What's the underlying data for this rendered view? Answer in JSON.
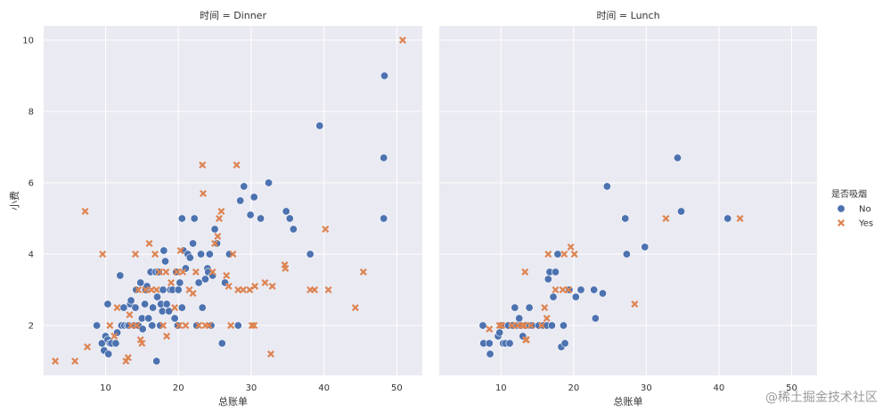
{
  "watermark": "@稀土掘金技术社区",
  "chart_data": {
    "type": "scatter",
    "facet_label_template": "时间 = {facet}",
    "xlabel": "总账单",
    "ylabel": "小费",
    "xlim": [
      1.5,
      53.5
    ],
    "ylim": [
      0.6,
      10.4
    ],
    "xticks": [
      10,
      20,
      30,
      40,
      50
    ],
    "yticks": [
      2,
      4,
      6,
      8,
      10
    ],
    "grid": true,
    "legend": {
      "title": "是否吸烟",
      "placement": "right",
      "entries": [
        {
          "name": "No",
          "marker": "circle",
          "color": "#4c72b0"
        },
        {
          "name": "Yes",
          "marker": "x",
          "color": "#dd8452"
        }
      ]
    },
    "panels": [
      {
        "facet": "Dinner",
        "series": [
          {
            "name": "No",
            "points": [
              [
                8.8,
                2.0
              ],
              [
                9.5,
                1.5
              ],
              [
                9.8,
                1.3
              ],
              [
                10.0,
                1.7
              ],
              [
                10.3,
                1.6
              ],
              [
                10.3,
                2.6
              ],
              [
                10.4,
                1.2
              ],
              [
                10.6,
                1.5
              ],
              [
                10.8,
                1.5
              ],
              [
                11.4,
                1.5
              ],
              [
                11.6,
                1.8
              ],
              [
                12.0,
                3.4
              ],
              [
                12.2,
                2.0
              ],
              [
                12.5,
                2.5
              ],
              [
                12.6,
                2.0
              ],
              [
                13.0,
                2.0
              ],
              [
                13.2,
                2.0
              ],
              [
                13.4,
                2.6
              ],
              [
                13.5,
                2.7
              ],
              [
                13.9,
                2.0
              ],
              [
                14.1,
                2.5
              ],
              [
                14.2,
                3.0
              ],
              [
                14.5,
                2.0
              ],
              [
                14.8,
                3.2
              ],
              [
                15.0,
                2.2
              ],
              [
                15.1,
                1.9
              ],
              [
                15.4,
                2.6
              ],
              [
                15.5,
                3.0
              ],
              [
                15.7,
                3.1
              ],
              [
                15.9,
                2.2
              ],
              [
                16.2,
                3.5
              ],
              [
                16.3,
                2.0
              ],
              [
                16.4,
                2.0
              ],
              [
                16.5,
                2.5
              ],
              [
                16.9,
                3.5
              ],
              [
                17.0,
                1.0
              ],
              [
                17.1,
                2.8
              ],
              [
                17.3,
                3.5
              ],
              [
                17.5,
                2.0
              ],
              [
                17.6,
                2.6
              ],
              [
                17.8,
                2.4
              ],
              [
                17.9,
                3.0
              ],
              [
                18.0,
                4.1
              ],
              [
                18.2,
                3.8
              ],
              [
                18.4,
                2.6
              ],
              [
                18.7,
                2.4
              ],
              [
                18.9,
                3.0
              ],
              [
                19.2,
                3.0
              ],
              [
                19.5,
                2.2
              ],
              [
                19.7,
                3.5
              ],
              [
                19.9,
                2.0
              ],
              [
                20.0,
                3.0
              ],
              [
                20.2,
                3.2
              ],
              [
                20.5,
                2.5
              ],
              [
                20.5,
                5.0
              ],
              [
                20.7,
                4.1
              ],
              [
                21.0,
                3.6
              ],
              [
                21.3,
                4.0
              ],
              [
                21.6,
                3.9
              ],
              [
                22.0,
                4.3
              ],
              [
                22.2,
                5.0
              ],
              [
                22.5,
                2.0
              ],
              [
                22.8,
                3.2
              ],
              [
                23.1,
                4.0
              ],
              [
                23.3,
                2.5
              ],
              [
                23.7,
                3.3
              ],
              [
                24.0,
                3.6
              ],
              [
                24.1,
                3.5
              ],
              [
                24.3,
                4.0
              ],
              [
                24.5,
                2.0
              ],
              [
                24.7,
                3.4
              ],
              [
                25.0,
                4.7
              ],
              [
                25.3,
                4.3
              ],
              [
                26.0,
                1.5
              ],
              [
                26.4,
                3.2
              ],
              [
                27.0,
                4.0
              ],
              [
                28.2,
                2.0
              ],
              [
                28.5,
                5.5
              ],
              [
                29.0,
                5.9
              ],
              [
                29.9,
                5.1
              ],
              [
                30.4,
                5.6
              ],
              [
                31.3,
                5.0
              ],
              [
                32.4,
                6.0
              ],
              [
                34.8,
                5.2
              ],
              [
                35.3,
                5.0
              ],
              [
                35.8,
                4.7
              ],
              [
                38.1,
                4.0
              ],
              [
                39.4,
                7.6
              ],
              [
                48.2,
                6.7
              ],
              [
                48.3,
                9.0
              ],
              [
                48.2,
                5.0
              ]
            ]
          },
          {
            "name": "Yes",
            "points": [
              [
                3.1,
                1.0
              ],
              [
                5.8,
                1.0
              ],
              [
                7.2,
                5.2
              ],
              [
                7.5,
                1.4
              ],
              [
                9.6,
                4.0
              ],
              [
                10.6,
                2.0
              ],
              [
                11.2,
                1.7
              ],
              [
                11.6,
                2.5
              ],
              [
                12.8,
                1.0
              ],
              [
                13.1,
                1.1
              ],
              [
                13.3,
                2.3
              ],
              [
                13.5,
                2.0
              ],
              [
                14.1,
                4.0
              ],
              [
                14.3,
                2.0
              ],
              [
                14.5,
                3.0
              ],
              [
                14.8,
                1.6
              ],
              [
                15.0,
                1.5
              ],
              [
                15.5,
                3.0
              ],
              [
                16.0,
                4.3
              ],
              [
                16.3,
                3.0
              ],
              [
                16.8,
                4.0
              ],
              [
                17.0,
                3.0
              ],
              [
                17.4,
                3.5
              ],
              [
                17.9,
                2.0
              ],
              [
                18.3,
                3.5
              ],
              [
                18.4,
                1.7
              ],
              [
                19.0,
                3.2
              ],
              [
                19.5,
                2.5
              ],
              [
                19.8,
                3.5
              ],
              [
                20.1,
                2.0
              ],
              [
                20.3,
                4.1
              ],
              [
                20.6,
                3.5
              ],
              [
                21.0,
                2.0
              ],
              [
                21.5,
                3.0
              ],
              [
                22.0,
                2.9
              ],
              [
                22.4,
                3.5
              ],
              [
                22.8,
                2.0
              ],
              [
                23.3,
                6.5
              ],
              [
                23.4,
                5.7
              ],
              [
                23.7,
                2.0
              ],
              [
                24.2,
                2.0
              ],
              [
                24.7,
                3.5
              ],
              [
                25.0,
                4.3
              ],
              [
                25.4,
                4.5
              ],
              [
                25.6,
                5.0
              ],
              [
                25.9,
                5.2
              ],
              [
                26.6,
                3.4
              ],
              [
                26.9,
                3.1
              ],
              [
                27.2,
                2.0
              ],
              [
                27.5,
                4.0
              ],
              [
                28.0,
                6.5
              ],
              [
                28.2,
                3.0
              ],
              [
                28.9,
                3.0
              ],
              [
                29.8,
                3.0
              ],
              [
                30.1,
                2.0
              ],
              [
                30.4,
                2.0
              ],
              [
                30.5,
                3.1
              ],
              [
                31.9,
                3.2
              ],
              [
                32.7,
                1.2
              ],
              [
                32.9,
                3.1
              ],
              [
                34.6,
                3.7
              ],
              [
                34.7,
                3.6
              ],
              [
                38.1,
                3.0
              ],
              [
                38.7,
                3.0
              ],
              [
                40.2,
                4.7
              ],
              [
                40.6,
                3.0
              ],
              [
                44.3,
                2.5
              ],
              [
                45.4,
                3.5
              ],
              [
                50.8,
                10.0
              ]
            ]
          }
        ]
      },
      {
        "facet": "Lunch",
        "series": [
          {
            "name": "No",
            "points": [
              [
                7.5,
                2.0
              ],
              [
                7.6,
                1.5
              ],
              [
                8.4,
                1.5
              ],
              [
                8.5,
                1.2
              ],
              [
                9.6,
                1.7
              ],
              [
                9.8,
                1.8
              ],
              [
                10.1,
                2.0
              ],
              [
                10.3,
                1.5
              ],
              [
                10.6,
                1.5
              ],
              [
                11.0,
                2.0
              ],
              [
                11.2,
                1.5
              ],
              [
                11.6,
                2.0
              ],
              [
                11.9,
                2.5
              ],
              [
                12.3,
                2.0
              ],
              [
                12.5,
                2.2
              ],
              [
                12.7,
                2.0
              ],
              [
                13.0,
                1.7
              ],
              [
                13.4,
                2.0
              ],
              [
                13.9,
                2.5
              ],
              [
                14.0,
                2.0
              ],
              [
                14.3,
                2.0
              ],
              [
                15.2,
                2.0
              ],
              [
                15.8,
                2.0
              ],
              [
                16.3,
                2.0
              ],
              [
                16.5,
                3.3
              ],
              [
                16.7,
                3.5
              ],
              [
                17.0,
                2.0
              ],
              [
                17.2,
                2.8
              ],
              [
                17.5,
                3.5
              ],
              [
                17.8,
                4.0
              ],
              [
                18.3,
                1.4
              ],
              [
                18.6,
                2.0
              ],
              [
                18.8,
                1.5
              ],
              [
                19.4,
                3.0
              ],
              [
                20.3,
                2.8
              ],
              [
                21.0,
                3.0
              ],
              [
                22.8,
                3.0
              ],
              [
                23.0,
                2.2
              ],
              [
                24.0,
                2.9
              ],
              [
                24.6,
                5.9
              ],
              [
                27.1,
                5.0
              ],
              [
                27.3,
                4.0
              ],
              [
                29.8,
                4.2
              ],
              [
                34.3,
                6.7
              ],
              [
                34.8,
                5.2
              ],
              [
                41.2,
                5.0
              ]
            ]
          },
          {
            "name": "Yes",
            "points": [
              [
                8.4,
                1.9
              ],
              [
                9.8,
                2.0
              ],
              [
                10.1,
                2.0
              ],
              [
                11.5,
                2.0
              ],
              [
                12.3,
                2.0
              ],
              [
                12.9,
                2.0
              ],
              [
                13.2,
                2.0
              ],
              [
                13.3,
                3.5
              ],
              [
                13.4,
                1.6
              ],
              [
                13.5,
                1.6
              ],
              [
                14.1,
                2.0
              ],
              [
                15.6,
                2.0
              ],
              [
                16.0,
                2.5
              ],
              [
                16.3,
                2.2
              ],
              [
                16.5,
                4.0
              ],
              [
                17.5,
                3.0
              ],
              [
                18.5,
                3.0
              ],
              [
                18.7,
                4.0
              ],
              [
                19.3,
                3.0
              ],
              [
                19.6,
                4.2
              ],
              [
                20.1,
                4.0
              ],
              [
                28.4,
                2.6
              ],
              [
                32.7,
                5.0
              ],
              [
                42.9,
                5.0
              ]
            ]
          }
        ]
      }
    ]
  }
}
